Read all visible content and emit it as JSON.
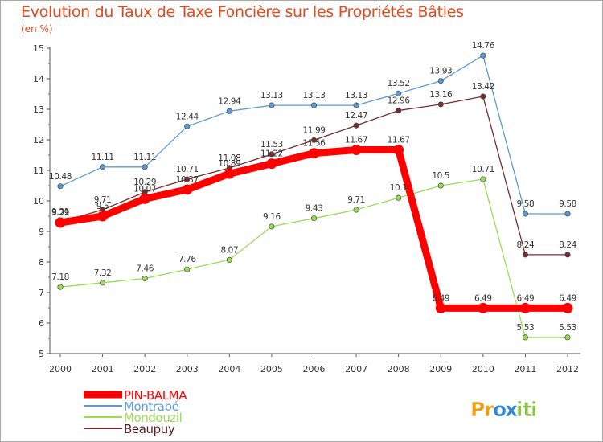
{
  "chart_data": {
    "type": "line",
    "title": "Evolution du Taux de Taxe Foncière sur les Propriétés Bâties",
    "ylabel": "(en %)",
    "xlabel": "",
    "x": [
      "2000",
      "2001",
      "2002",
      "2003",
      "2004",
      "2005",
      "2006",
      "2007",
      "2008",
      "2009",
      "2010",
      "2011",
      "2012"
    ],
    "ylim": [
      5,
      15
    ],
    "yticks": [
      5,
      6,
      7,
      8,
      9,
      10,
      11,
      12,
      13,
      14,
      15
    ],
    "grid": false,
    "legend_position": "bottom-left",
    "series": [
      {
        "name": "PIN-BALMA",
        "color": "#ff0000",
        "values": [
          9.29,
          9.5,
          10.07,
          10.37,
          10.89,
          11.22,
          11.56,
          11.67,
          11.67,
          6.49,
          6.49,
          6.49,
          6.49
        ],
        "labels": [
          "9.29",
          "9.5",
          "10.07",
          "10.37",
          "10.89",
          "11.22",
          "11.56",
          "11.67",
          "11.67",
          "6.49",
          "6.49",
          "6.49",
          "6.49"
        ]
      },
      {
        "name": "Montrabé",
        "color": "#5b9bd5",
        "values": [
          10.48,
          11.11,
          11.11,
          12.44,
          12.94,
          13.13,
          13.13,
          13.13,
          13.52,
          13.93,
          14.76,
          9.58,
          9.58
        ],
        "labels": [
          "10.48",
          "11.11",
          "11.11",
          "12.44",
          "12.94",
          "13.13",
          "13.13",
          "13.13",
          "13.52",
          "13.93",
          "14.76",
          "9.58",
          "9.58"
        ]
      },
      {
        "name": "Mondouzil",
        "color": "#99dd55",
        "values": [
          7.18,
          7.32,
          7.46,
          7.76,
          8.07,
          9.16,
          9.43,
          9.71,
          10.1,
          10.5,
          10.71,
          5.53,
          5.53
        ],
        "labels": [
          "7.18",
          "7.32",
          "7.46",
          "7.76",
          "8.07",
          "9.16",
          "9.43",
          "9.71",
          "10.1",
          "10.5",
          "10.71",
          "5.53",
          "5.53"
        ]
      },
      {
        "name": "Beaupuy",
        "color": "#7a2d2d",
        "values": [
          9.31,
          9.71,
          10.29,
          10.71,
          11.08,
          11.53,
          11.99,
          12.47,
          12.96,
          13.16,
          13.42,
          8.24,
          8.24
        ],
        "labels": [
          "9.31",
          "9.71",
          "10.29",
          "10.71",
          "11.08",
          "11.53",
          "11.99",
          "12.47",
          "12.96",
          "13.16",
          "13.42",
          "8.24",
          "8.24"
        ]
      }
    ]
  },
  "branding": {
    "logo_text": "Proxiti",
    "logo_letters": [
      "P",
      "r",
      "o",
      "x",
      "i",
      "t",
      "i"
    ],
    "logo_colors": [
      "#f39c12",
      "#f39c12",
      "#2e86de",
      "#2e86de",
      "#8bc34a",
      "#8bc34a",
      "#8bc34a"
    ]
  }
}
